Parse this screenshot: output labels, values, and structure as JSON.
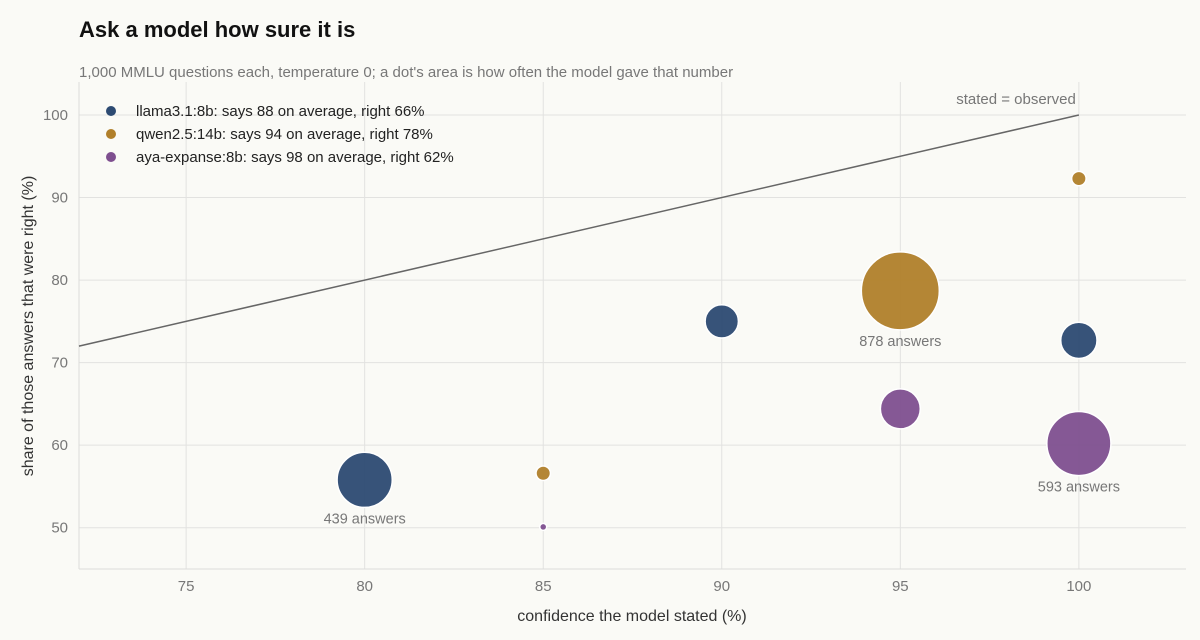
{
  "chart_data": {
    "type": "scatter",
    "title": "Ask a model how sure it is",
    "subtitle": "1,000 MMLU questions each, temperature 0; a dot's area is how often the model gave that number",
    "xlabel": "confidence the model stated (%)",
    "ylabel": "share of those answers that were right (%)",
    "xlim": [
      72,
      103
    ],
    "ylim": [
      45,
      104
    ],
    "xticks": [
      75,
      80,
      85,
      90,
      95,
      100
    ],
    "yticks": [
      50,
      60,
      70,
      80,
      90,
      100
    ],
    "grid": true,
    "legend_position": "top-left",
    "reference_line": {
      "label": "stated = observed",
      "from": [
        72,
        72
      ],
      "to": [
        100,
        100
      ],
      "color": "#666666"
    },
    "series": [
      {
        "name": "llama3.1:8b: says 88 on average, right 66%",
        "color": "#2c4a72",
        "points": [
          {
            "x": 80,
            "y": 55.8,
            "count": 439
          },
          {
            "x": 90,
            "y": 75.0,
            "count": 160
          },
          {
            "x": 100,
            "y": 72.7,
            "count": 190
          }
        ]
      },
      {
        "name": "qwen2.5:14b: says 94 on average, right 78%",
        "color": "#b07f2a",
        "points": [
          {
            "x": 85,
            "y": 56.6,
            "count": 30
          },
          {
            "x": 95,
            "y": 78.7,
            "count": 878
          },
          {
            "x": 100,
            "y": 92.3,
            "count": 30
          }
        ]
      },
      {
        "name": "aya-expanse:8b: says 98 on average, right 62%",
        "color": "#7e4f8f",
        "points": [
          {
            "x": 85,
            "y": 50.1,
            "count": 6
          },
          {
            "x": 95,
            "y": 64.4,
            "count": 230
          },
          {
            "x": 100,
            "y": 60.2,
            "count": 593
          }
        ]
      }
    ],
    "annotations": [
      {
        "text": "439 answers",
        "x": 80,
        "y": 55.8
      },
      {
        "text": "878 answers",
        "x": 95,
        "y": 78.7
      },
      {
        "text": "593 answers",
        "x": 100,
        "y": 60.2
      }
    ]
  }
}
